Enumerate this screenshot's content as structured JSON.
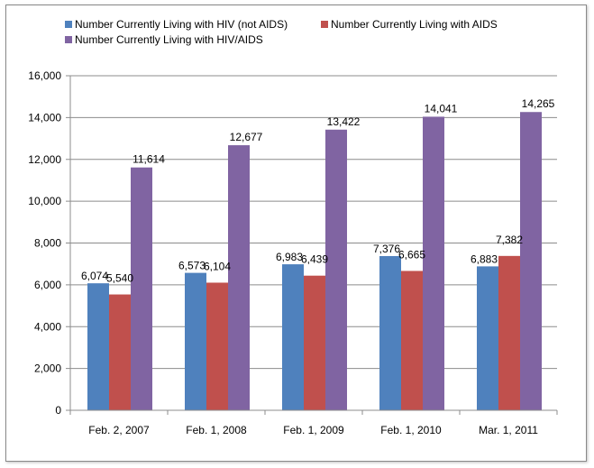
{
  "chart_data": {
    "type": "bar",
    "categories": [
      "Feb. 2, 2007",
      "Feb. 1, 2008",
      "Feb. 1, 2009",
      "Feb. 1, 2010",
      "Mar. 1, 2011"
    ],
    "series": [
      {
        "name": "Number Currently Living with HIV (not AIDS)",
        "color": "#4F81BD",
        "values": [
          6074,
          6573,
          6983,
          7376,
          6883
        ],
        "labels": [
          "6,074",
          "6,573",
          "6,983",
          "7,376",
          "6,883"
        ]
      },
      {
        "name": "Number Currently Living with AIDS",
        "color": "#C0504D",
        "values": [
          5540,
          6104,
          6439,
          6665,
          7382
        ],
        "labels": [
          "5,540",
          "6,104",
          "6,439",
          "6,665",
          "7,382"
        ]
      },
      {
        "name": "Number Currently Living with HIV/AIDS",
        "color": "#8064A2",
        "values": [
          11614,
          12677,
          13422,
          14041,
          14265
        ],
        "labels": [
          "11,614",
          "12,677",
          "13,422",
          "14,041",
          "14,265"
        ]
      }
    ],
    "yticks": [
      "0",
      "2,000",
      "4,000",
      "6,000",
      "8,000",
      "10,000",
      "12,000",
      "14,000",
      "16,000"
    ],
    "ylim": [
      0,
      16000
    ],
    "ystep": 2000,
    "grid": true,
    "legend_position": "top",
    "title": "",
    "xlabel": "",
    "ylabel": ""
  }
}
